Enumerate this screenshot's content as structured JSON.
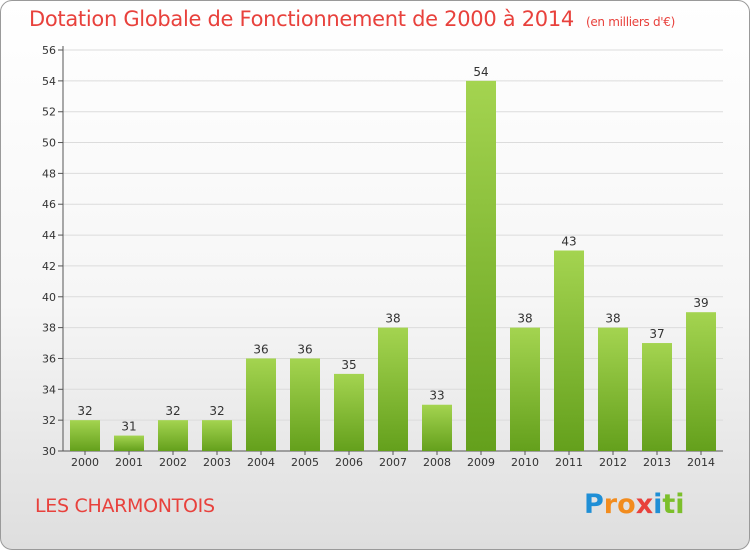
{
  "title": "Dotation Globale de Fonctionnement de 2000 à 2014",
  "unit_label": "(en milliers d'€)",
  "commune": "LES CHARMONTOIS",
  "logo": {
    "text": "Proxiti",
    "letters": [
      {
        "char": "P",
        "color": "#1f8fd6"
      },
      {
        "char": "r",
        "color": "#f28c1e"
      },
      {
        "char": "o",
        "color": "#f28c1e"
      },
      {
        "char": "x",
        "color": "#e8413c"
      },
      {
        "char": "i",
        "color": "#1f8fd6"
      },
      {
        "char": "t",
        "color": "#7cbf2b"
      },
      {
        "char": "i",
        "color": "#7cbf2b"
      }
    ]
  },
  "colors": {
    "bar_light": "#a4d450",
    "bar_dark": "#64a01c",
    "title": "#e8413c",
    "grid": "#dcdcdc"
  },
  "chart_data": {
    "type": "bar",
    "title": "Dotation Globale de Fonctionnement de 2000 à 2014",
    "ylabel": "",
    "xlabel": "",
    "categories": [
      "2000",
      "2001",
      "2002",
      "2003",
      "2004",
      "2005",
      "2006",
      "2007",
      "2008",
      "2009",
      "2010",
      "2011",
      "2012",
      "2013",
      "2014"
    ],
    "values": [
      32,
      31,
      32,
      32,
      36,
      36,
      35,
      38,
      33,
      54,
      38,
      43,
      38,
      37,
      39
    ],
    "ylim": [
      30,
      56
    ],
    "yticks": [
      30,
      32,
      34,
      36,
      38,
      40,
      42,
      44,
      46,
      48,
      50,
      52,
      54,
      56
    ],
    "grid": true,
    "data_labels": true
  }
}
